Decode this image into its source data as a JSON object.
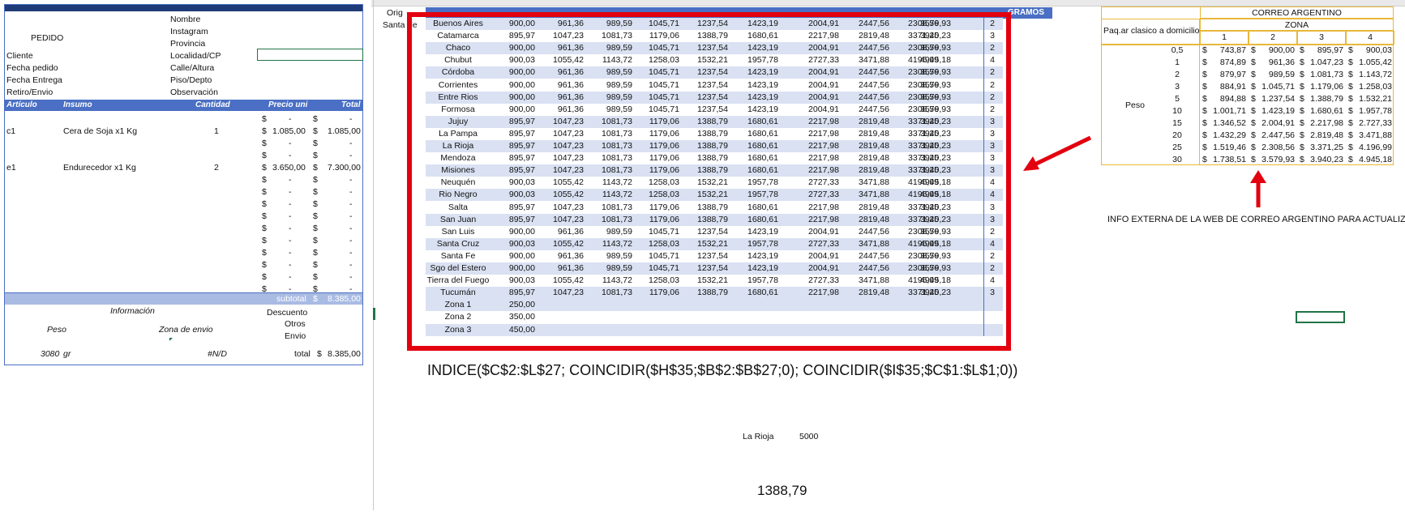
{
  "order": {
    "labels_left": [
      "PEDIDO",
      "Cliente",
      "Fecha pedido",
      "Fecha Entrega",
      "Retiro/Envio"
    ],
    "labels_right": [
      "Nombre",
      "Instagram",
      "Provincia",
      "Localidad/CP",
      "Calle/Altura",
      "Piso/Depto",
      "Observación"
    ],
    "headers": {
      "articulo": "Artículo",
      "insumo": "Insumo",
      "cantidad": "Cantidad",
      "precio": "Precio uni",
      "total": "Total"
    },
    "items": [
      {
        "code": "c1",
        "name": "Cera de Soja x1 Kg",
        "qty": "1",
        "price": "1.085,00",
        "total": "1.085,00"
      },
      {
        "code": "e1",
        "name": "Endurecedor x1 Kg",
        "qty": "2",
        "price": "3.650,00",
        "total": "7.300,00"
      }
    ],
    "currency": "$",
    "dash": "-",
    "subtotal_label": "subtotal",
    "subtotal_value": "8.385,00",
    "info_label": "Información",
    "peso_label": "Peso",
    "zona_label": "Zona de envio",
    "descuento_label": "Descuento",
    "otros_label": "Otros",
    "envio_label": "Envio",
    "weight_value": "3080",
    "weight_unit": "gr",
    "zona_value": "#N/D",
    "total_label": "total",
    "total_value": "8.385,00"
  },
  "sheet": {
    "origin_label": "Orig",
    "origin_value": "Santa Fe",
    "gramos_header": "GRAMOS",
    "provinces": [
      {
        "name": "Buenos Aires",
        "v": [
          "900,00",
          "961,36",
          "989,59",
          "1045,71",
          "1237,54",
          "1423,19",
          "2004,91",
          "2447,56",
          "2308,56",
          "3579,93"
        ],
        "z": "2"
      },
      {
        "name": "Catamarca",
        "v": [
          "895,97",
          "1047,23",
          "1081,73",
          "1179,06",
          "1388,79",
          "1680,61",
          "2217,98",
          "2819,48",
          "3371,25",
          "3940,23"
        ],
        "z": "3"
      },
      {
        "name": "Chaco",
        "v": [
          "900,00",
          "961,36",
          "989,59",
          "1045,71",
          "1237,54",
          "1423,19",
          "2004,91",
          "2447,56",
          "2308,56",
          "3579,93"
        ],
        "z": "2"
      },
      {
        "name": "Chubut",
        "v": [
          "900,03",
          "1055,42",
          "1143,72",
          "1258,03",
          "1532,21",
          "1957,78",
          "2727,33",
          "3471,88",
          "4196,99",
          "4945,18"
        ],
        "z": "4"
      },
      {
        "name": "Córdoba",
        "v": [
          "900,00",
          "961,36",
          "989,59",
          "1045,71",
          "1237,54",
          "1423,19",
          "2004,91",
          "2447,56",
          "2308,56",
          "3579,93"
        ],
        "z": "2"
      },
      {
        "name": "Corrientes",
        "v": [
          "900,00",
          "961,36",
          "989,59",
          "1045,71",
          "1237,54",
          "1423,19",
          "2004,91",
          "2447,56",
          "2308,56",
          "3579,93"
        ],
        "z": "2"
      },
      {
        "name": "Entre Rios",
        "v": [
          "900,00",
          "961,36",
          "989,59",
          "1045,71",
          "1237,54",
          "1423,19",
          "2004,91",
          "2447,56",
          "2308,56",
          "3579,93"
        ],
        "z": "2"
      },
      {
        "name": "Formosa",
        "v": [
          "900,00",
          "961,36",
          "989,59",
          "1045,71",
          "1237,54",
          "1423,19",
          "2004,91",
          "2447,56",
          "2308,56",
          "3579,93"
        ],
        "z": "2"
      },
      {
        "name": "Jujuy",
        "v": [
          "895,97",
          "1047,23",
          "1081,73",
          "1179,06",
          "1388,79",
          "1680,61",
          "2217,98",
          "2819,48",
          "3371,25",
          "3940,23"
        ],
        "z": "3"
      },
      {
        "name": "La Pampa",
        "v": [
          "895,97",
          "1047,23",
          "1081,73",
          "1179,06",
          "1388,79",
          "1680,61",
          "2217,98",
          "2819,48",
          "3371,25",
          "3940,23"
        ],
        "z": "3"
      },
      {
        "name": "La Rioja",
        "v": [
          "895,97",
          "1047,23",
          "1081,73",
          "1179,06",
          "1388,79",
          "1680,61",
          "2217,98",
          "2819,48",
          "3371,25",
          "3940,23"
        ],
        "z": "3"
      },
      {
        "name": "Mendoza",
        "v": [
          "895,97",
          "1047,23",
          "1081,73",
          "1179,06",
          "1388,79",
          "1680,61",
          "2217,98",
          "2819,48",
          "3371,25",
          "3940,23"
        ],
        "z": "3"
      },
      {
        "name": "Misiones",
        "v": [
          "895,97",
          "1047,23",
          "1081,73",
          "1179,06",
          "1388,79",
          "1680,61",
          "2217,98",
          "2819,48",
          "3371,25",
          "3940,23"
        ],
        "z": "3"
      },
      {
        "name": "Neuquén",
        "v": [
          "900,03",
          "1055,42",
          "1143,72",
          "1258,03",
          "1532,21",
          "1957,78",
          "2727,33",
          "3471,88",
          "4196,99",
          "4945,18"
        ],
        "z": "4"
      },
      {
        "name": "Rio Negro",
        "v": [
          "900,03",
          "1055,42",
          "1143,72",
          "1258,03",
          "1532,21",
          "1957,78",
          "2727,33",
          "3471,88",
          "4196,99",
          "4945,18"
        ],
        "z": "4"
      },
      {
        "name": "Salta",
        "v": [
          "895,97",
          "1047,23",
          "1081,73",
          "1179,06",
          "1388,79",
          "1680,61",
          "2217,98",
          "2819,48",
          "3371,25",
          "3940,23"
        ],
        "z": "3"
      },
      {
        "name": "San Juan",
        "v": [
          "895,97",
          "1047,23",
          "1081,73",
          "1179,06",
          "1388,79",
          "1680,61",
          "2217,98",
          "2819,48",
          "3371,25",
          "3940,23"
        ],
        "z": "3"
      },
      {
        "name": "San Luis",
        "v": [
          "900,00",
          "961,36",
          "989,59",
          "1045,71",
          "1237,54",
          "1423,19",
          "2004,91",
          "2447,56",
          "2308,56",
          "3579,93"
        ],
        "z": "2"
      },
      {
        "name": "Santa Cruz",
        "v": [
          "900,03",
          "1055,42",
          "1143,72",
          "1258,03",
          "1532,21",
          "1957,78",
          "2727,33",
          "3471,88",
          "4196,99",
          "4945,18"
        ],
        "z": "4"
      },
      {
        "name": "Santa Fe",
        "v": [
          "900,00",
          "961,36",
          "989,59",
          "1045,71",
          "1237,54",
          "1423,19",
          "2004,91",
          "2447,56",
          "2308,56",
          "3579,93"
        ],
        "z": "2"
      },
      {
        "name": "Sgo del Estero",
        "v": [
          "900,00",
          "961,36",
          "989,59",
          "1045,71",
          "1237,54",
          "1423,19",
          "2004,91",
          "2447,56",
          "2308,56",
          "3579,93"
        ],
        "z": "2"
      },
      {
        "name": "Tierra del Fuego",
        "v": [
          "900,03",
          "1055,42",
          "1143,72",
          "1258,03",
          "1532,21",
          "1957,78",
          "2727,33",
          "3471,88",
          "4196,99",
          "4945,18"
        ],
        "z": "4"
      },
      {
        "name": "Tucumán",
        "v": [
          "895,97",
          "1047,23",
          "1081,73",
          "1179,06",
          "1388,79",
          "1680,61",
          "2217,98",
          "2819,48",
          "3371,25",
          "3940,23"
        ],
        "z": "3"
      },
      {
        "name": "Zona 1",
        "v": [
          "250,00"
        ],
        "z": ""
      },
      {
        "name": "Zona 2",
        "v": [
          "350,00"
        ],
        "z": ""
      },
      {
        "name": "Zona 3",
        "v": [
          "450,00"
        ],
        "z": ""
      }
    ],
    "formula": "INDICE($C$2:$L$27;   COINCIDIR($H$35;$B$2:$B$27;0); COINCIDIR($I$35;$C$1:$L$1;0))",
    "lookup_province": "La Rioja",
    "lookup_weight": "5000",
    "result": "1388,79"
  },
  "correo": {
    "title": "CORREO ARGENTINO",
    "service": "Paq.ar clasico a domicilio",
    "zona_header": "ZONA",
    "zones": [
      "1",
      "2",
      "3",
      "4"
    ],
    "peso_label": "Peso",
    "currency": "$",
    "rows": [
      {
        "w": "0,5",
        "v": [
          "743,87",
          "900,00",
          "895,97",
          "900,03"
        ]
      },
      {
        "w": "1",
        "v": [
          "874,89",
          "961,36",
          "1.047,23",
          "1.055,42"
        ]
      },
      {
        "w": "2",
        "v": [
          "879,97",
          "989,59",
          "1.081,73",
          "1.143,72"
        ]
      },
      {
        "w": "3",
        "v": [
          "884,91",
          "1.045,71",
          "1.179,06",
          "1.258,03"
        ]
      },
      {
        "w": "5",
        "v": [
          "894,88",
          "1.237,54",
          "1.388,79",
          "1.532,21"
        ]
      },
      {
        "w": "10",
        "v": [
          "1.001,71",
          "1.423,19",
          "1.680,61",
          "1.957,78"
        ]
      },
      {
        "w": "15",
        "v": [
          "1.346,52",
          "2.004,91",
          "2.217,98",
          "2.727,33"
        ]
      },
      {
        "w": "20",
        "v": [
          "1.432,29",
          "2.447,56",
          "2.819,48",
          "3.471,88"
        ]
      },
      {
        "w": "25",
        "v": [
          "1.519,46",
          "2.308,56",
          "3.371,25",
          "4.196,99"
        ]
      },
      {
        "w": "30",
        "v": [
          "1.738,51",
          "3.579,93",
          "3.940,23",
          "4.945,18"
        ]
      }
    ],
    "note": "INFO EXTERNA DE LA WEB DE CORREO ARGENTINO PARA ACTUALIZAR"
  },
  "colors": {
    "accent": "#4a6fc4",
    "band": "#d9e1f2",
    "red": "#e3000f",
    "gold": "#e8b83a",
    "excel_green": "#217346"
  }
}
